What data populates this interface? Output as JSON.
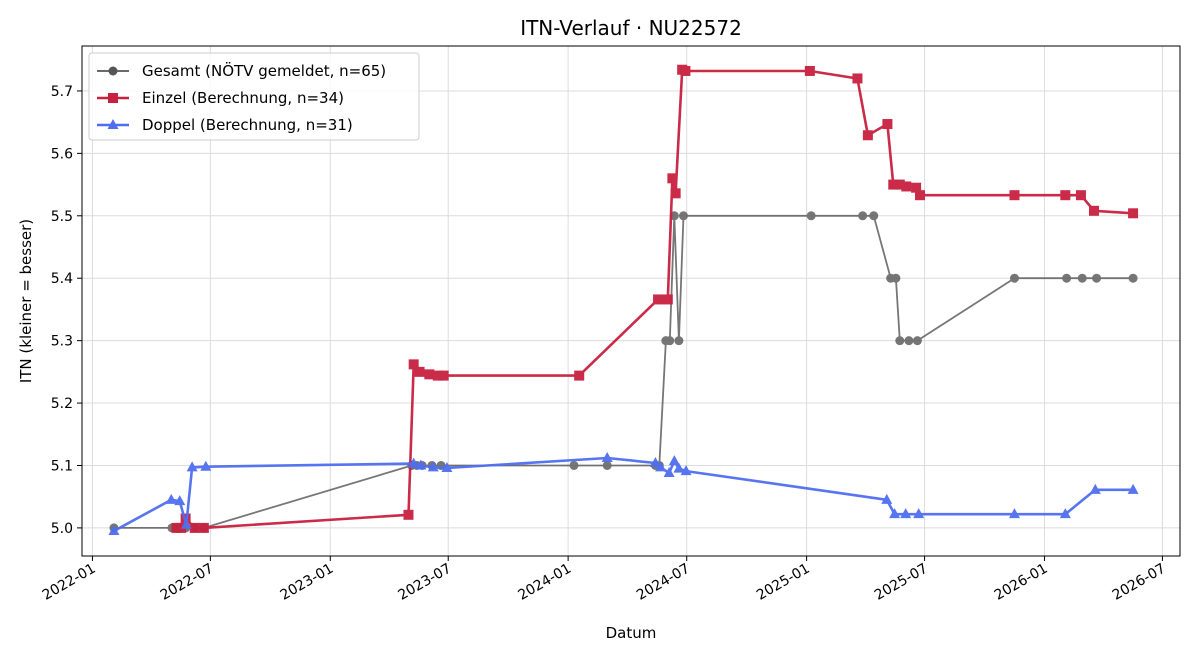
{
  "chart_data": {
    "type": "line",
    "title": "ITN-Verlauf · NU22572",
    "xlabel": "Datum",
    "ylabel": "ITN  (kleiner = besser)",
    "xlim": [
      "2021-12-16",
      "2026-07-28"
    ],
    "ylim": [
      4.955,
      5.772
    ],
    "x_ticks": [
      "2022-01",
      "2022-07",
      "2023-01",
      "2023-07",
      "2024-01",
      "2024-07",
      "2025-01",
      "2025-07",
      "2026-01",
      "2026-07"
    ],
    "y_ticks": [
      5.0,
      5.1,
      5.2,
      5.3,
      5.4,
      5.5,
      5.6,
      5.7
    ],
    "grid": true,
    "legend_position": "top-left",
    "series": [
      {
        "name": "Gesamt (NÖTV gemeldet, n=65)",
        "color": "#555555",
        "marker": "circle",
        "points": [
          [
            "2022-02-03",
            5.0
          ],
          [
            "2022-05-03",
            5.0
          ],
          [
            "2022-05-10",
            5.0
          ],
          [
            "2022-05-16",
            5.0
          ],
          [
            "2022-05-24",
            5.0
          ],
          [
            "2022-06-07",
            5.0
          ],
          [
            "2022-06-21",
            5.0
          ],
          [
            "2023-05-06",
            5.1
          ],
          [
            "2023-05-14",
            5.1
          ],
          [
            "2023-05-22",
            5.1
          ],
          [
            "2023-06-06",
            5.1
          ],
          [
            "2023-06-20",
            5.1
          ],
          [
            "2024-01-10",
            5.1
          ],
          [
            "2024-03-01",
            5.1
          ],
          [
            "2024-05-14",
            5.1
          ],
          [
            "2024-05-20",
            5.1
          ],
          [
            "2024-05-30",
            5.3
          ],
          [
            "2024-06-05",
            5.3
          ],
          [
            "2024-06-12",
            5.5
          ],
          [
            "2024-06-19",
            5.3
          ],
          [
            "2024-06-26",
            5.5
          ],
          [
            "2025-01-08",
            5.5
          ],
          [
            "2025-03-28",
            5.5
          ],
          [
            "2025-04-14",
            5.5
          ],
          [
            "2025-05-10",
            5.4
          ],
          [
            "2025-05-18",
            5.4
          ],
          [
            "2025-05-24",
            5.3
          ],
          [
            "2025-06-07",
            5.3
          ],
          [
            "2025-06-20",
            5.3
          ],
          [
            "2025-11-16",
            5.4
          ],
          [
            "2026-02-04",
            5.4
          ],
          [
            "2026-02-28",
            5.4
          ],
          [
            "2026-03-22",
            5.4
          ],
          [
            "2026-05-17",
            5.4
          ]
        ]
      },
      {
        "name": "Einzel (Berechnung, n=34)",
        "color": "#c8203f",
        "marker": "square",
        "points": [
          [
            "2022-05-10",
            5.0
          ],
          [
            "2022-05-17",
            5.0
          ],
          [
            "2022-05-24",
            5.015
          ],
          [
            "2022-06-07",
            5.0
          ],
          [
            "2022-06-21",
            5.0
          ],
          [
            "2023-05-01",
            5.021
          ],
          [
            "2023-05-09",
            5.262
          ],
          [
            "2023-05-18",
            5.25
          ],
          [
            "2023-06-02",
            5.246
          ],
          [
            "2023-06-15",
            5.244
          ],
          [
            "2023-06-24",
            5.244
          ],
          [
            "2024-01-18",
            5.244
          ],
          [
            "2024-05-18",
            5.366
          ],
          [
            "2024-06-02",
            5.366
          ],
          [
            "2024-06-09",
            5.56
          ],
          [
            "2024-06-14",
            5.536
          ],
          [
            "2024-06-24",
            5.734
          ],
          [
            "2024-06-29",
            5.732
          ],
          [
            "2025-01-06",
            5.732
          ],
          [
            "2025-03-20",
            5.72
          ],
          [
            "2025-04-05",
            5.629
          ],
          [
            "2025-05-05",
            5.647
          ],
          [
            "2025-05-14",
            5.55
          ],
          [
            "2025-05-24",
            5.55
          ],
          [
            "2025-06-03",
            5.547
          ],
          [
            "2025-06-18",
            5.545
          ],
          [
            "2025-06-24",
            5.533
          ],
          [
            "2025-11-16",
            5.533
          ],
          [
            "2026-02-02",
            5.533
          ],
          [
            "2026-02-26",
            5.533
          ],
          [
            "2026-03-18",
            5.508
          ],
          [
            "2026-05-17",
            5.504
          ]
        ]
      },
      {
        "name": "Doppel (Berechnung, n=31)",
        "color": "#4f6ef0",
        "marker": "triangle",
        "points": [
          [
            "2022-02-03",
            4.995
          ],
          [
            "2022-05-02",
            5.045
          ],
          [
            "2022-05-15",
            5.043
          ],
          [
            "2022-05-25",
            5.005
          ],
          [
            "2022-06-03",
            5.097
          ],
          [
            "2022-06-24",
            5.098
          ],
          [
            "2023-05-09",
            5.103
          ],
          [
            "2023-05-20",
            5.1
          ],
          [
            "2023-06-08",
            5.097
          ],
          [
            "2023-06-29",
            5.096
          ],
          [
            "2024-03-01",
            5.112
          ],
          [
            "2024-05-14",
            5.104
          ],
          [
            "2024-05-22",
            5.097
          ],
          [
            "2024-06-04",
            5.088
          ],
          [
            "2024-06-12",
            5.107
          ],
          [
            "2024-06-19",
            5.095
          ],
          [
            "2024-06-30",
            5.091
          ],
          [
            "2025-05-04",
            5.045
          ],
          [
            "2025-05-16",
            5.022
          ],
          [
            "2025-06-02",
            5.022
          ],
          [
            "2025-06-22",
            5.022
          ],
          [
            "2025-11-16",
            5.022
          ],
          [
            "2026-02-02",
            5.022
          ],
          [
            "2026-03-20",
            5.061
          ],
          [
            "2026-05-17",
            5.061
          ]
        ]
      }
    ]
  }
}
